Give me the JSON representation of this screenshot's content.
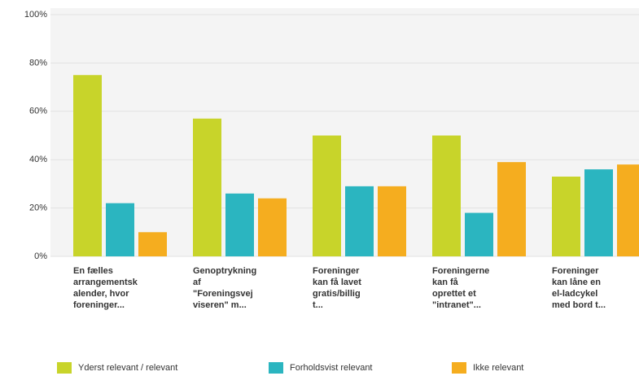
{
  "chart_data": {
    "type": "bar",
    "categories": [
      [
        "En fælles",
        "arrangementsk",
        "alender, hvor",
        "foreninger..."
      ],
      [
        "Genoptrykning",
        "af",
        "\"Foreningsvej",
        "viseren\" m..."
      ],
      [
        "Foreninger",
        "kan få lavet",
        "gratis/billig",
        "t..."
      ],
      [
        "Foreningerne",
        "kan få",
        "oprettet et",
        "\"intranet\"..."
      ],
      [
        "Foreninger",
        "kan låne en",
        "el-ladcykel",
        "med bord t..."
      ]
    ],
    "series": [
      {
        "name": "Yderst relevant / relevant",
        "color": "#c8d42a",
        "values": [
          75,
          57,
          50,
          50,
          33
        ]
      },
      {
        "name": "Forholdsvist relevant",
        "color": "#2bb5c0",
        "values": [
          22,
          26,
          29,
          18,
          36
        ]
      },
      {
        "name": "Ikke relevant",
        "color": "#f5ad1f",
        "values": [
          10,
          24,
          29,
          39,
          38
        ]
      }
    ],
    "ylim": [
      0,
      100
    ],
    "yticks": [
      {
        "value": 0,
        "label": "0%"
      },
      {
        "value": 20,
        "label": "20%"
      },
      {
        "value": 40,
        "label": "40%"
      },
      {
        "value": 60,
        "label": "60%"
      },
      {
        "value": 80,
        "label": "80%"
      },
      {
        "value": 100,
        "label": "100%"
      }
    ],
    "grid": true,
    "legend": "bottom"
  }
}
